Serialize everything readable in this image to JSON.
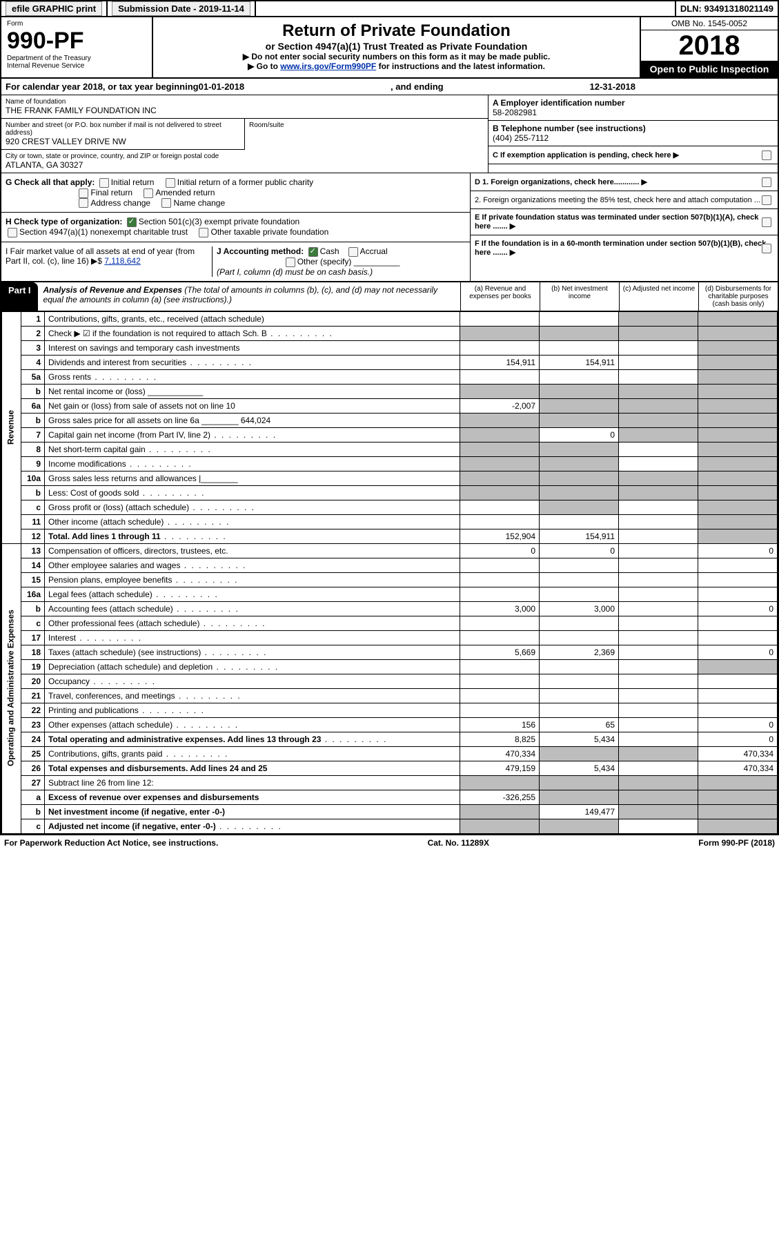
{
  "header_bar": {
    "efile": "efile GRAPHIC print",
    "submission_label": "Submission Date - 2019-11-14",
    "dln": "DLN: 93491318021149"
  },
  "form_header": {
    "form_word": "Form",
    "form_no": "990-PF",
    "dept": "Department of the Treasury",
    "irs": "Internal Revenue Service",
    "title": "Return of Private Foundation",
    "subtitle": "or Section 4947(a)(1) Trust Treated as Private Foundation",
    "note1": "▶ Do not enter social security numbers on this form as it may be made public.",
    "note2_prefix": "▶ Go to ",
    "note2_link": "www.irs.gov/Form990PF",
    "note2_suffix": " for instructions and the latest information.",
    "omb": "OMB No. 1545-0052",
    "year": "2018",
    "open_public": "Open to Public Inspection"
  },
  "cal_year": {
    "prefix": "For calendar year 2018, or tax year beginning ",
    "begin": "01-01-2018",
    "mid": " , and ending ",
    "end": "12-31-2018"
  },
  "name_block": {
    "label": "Name of foundation",
    "value": "THE FRANK FAMILY FOUNDATION INC"
  },
  "ein_block": {
    "label": "A Employer identification number",
    "value": "58-2082981"
  },
  "addr_block": {
    "label": "Number and street (or P.O. box number if mail is not delivered to street address)",
    "value": "920 CREST VALLEY DRIVE NW",
    "room_label": "Room/suite"
  },
  "phone_block": {
    "label": "B Telephone number (see instructions)",
    "value": "(404) 255-7112"
  },
  "city_block": {
    "label": "City or town, state or province, country, and ZIP or foreign postal code",
    "value": "ATLANTA, GA  30327"
  },
  "line_c": "C If exemption application is pending, check here",
  "line_g": {
    "label": "G Check all that apply:",
    "opt1": "Initial return",
    "opt2": "Initial return of a former public charity",
    "opt3": "Final return",
    "opt4": "Amended return",
    "opt5": "Address change",
    "opt6": "Name change"
  },
  "line_d": {
    "d1": "D 1. Foreign organizations, check here............",
    "d2": "2. Foreign organizations meeting the 85% test, check here and attach computation ..."
  },
  "line_h": {
    "label": "H Check type of organization:",
    "opt1": "Section 501(c)(3) exempt private foundation",
    "opt2": "Section 4947(a)(1) nonexempt charitable trust",
    "opt3": "Other taxable private foundation"
  },
  "line_e": "E If private foundation status was terminated under section 507(b)(1)(A), check here .......",
  "line_i": {
    "label": "I Fair market value of all assets at end of year (from Part II, col. (c), line 16) ▶$ ",
    "value": "7,118,642"
  },
  "line_j": {
    "label": "J Accounting method:",
    "cash": "Cash",
    "accrual": "Accrual",
    "other": "Other (specify)",
    "note": "(Part I, column (d) must be on cash basis.)"
  },
  "line_f": "F If the foundation is in a 60-month termination under section 507(b)(1)(B), check here .......",
  "part1": {
    "label": "Part I",
    "title": "Analysis of Revenue and Expenses",
    "note": " (The total of amounts in columns (b), (c), and (d) may not necessarily equal the amounts in column (a) (see instructions).)",
    "col_a": "(a)  Revenue and expenses per books",
    "col_b": "(b)  Net investment income",
    "col_c": "(c)  Adjusted net income",
    "col_d": "(d)  Disbursements for charitable purposes (cash basis only)"
  },
  "side_labels": {
    "revenue": "Revenue",
    "expenses": "Operating and Administrative Expenses"
  },
  "rows": [
    {
      "n": "1",
      "t": "Contributions, gifts, grants, etc., received (attach schedule)",
      "a": "",
      "b": "",
      "c": "s",
      "d": "s"
    },
    {
      "n": "2",
      "t": "Check ▶ ☑ if the foundation is not required to attach Sch. B",
      "a": "s",
      "b": "s",
      "c": "s",
      "d": "s",
      "dots": true
    },
    {
      "n": "3",
      "t": "Interest on savings and temporary cash investments",
      "a": "",
      "b": "",
      "c": "",
      "d": "s"
    },
    {
      "n": "4",
      "t": "Dividends and interest from securities",
      "a": "154,911",
      "b": "154,911",
      "c": "",
      "d": "s",
      "dots": true
    },
    {
      "n": "5a",
      "t": "Gross rents",
      "a": "",
      "b": "",
      "c": "",
      "d": "s",
      "dots": true
    },
    {
      "n": "b",
      "t": "Net rental income or (loss)  ____________",
      "a": "s",
      "b": "s",
      "c": "s",
      "d": "s"
    },
    {
      "n": "6a",
      "t": "Net gain or (loss) from sale of assets not on line 10",
      "a": "-2,007",
      "b": "s",
      "c": "s",
      "d": "s"
    },
    {
      "n": "b",
      "t": "Gross sales price for all assets on line 6a ________ 644,024",
      "a": "s",
      "b": "s",
      "c": "s",
      "d": "s"
    },
    {
      "n": "7",
      "t": "Capital gain net income (from Part IV, line 2)",
      "a": "s",
      "b": "0",
      "c": "s",
      "d": "s",
      "dots": true
    },
    {
      "n": "8",
      "t": "Net short-term capital gain",
      "a": "s",
      "b": "s",
      "c": "",
      "d": "s",
      "dots": true
    },
    {
      "n": "9",
      "t": "Income modifications",
      "a": "s",
      "b": "s",
      "c": "",
      "d": "s",
      "dots": true
    },
    {
      "n": "10a",
      "t": "Gross sales less returns and allowances  |________",
      "a": "s",
      "b": "s",
      "c": "s",
      "d": "s"
    },
    {
      "n": "b",
      "t": "Less: Cost of goods sold",
      "a": "s",
      "b": "s",
      "c": "s",
      "d": "s",
      "dots": true
    },
    {
      "n": "c",
      "t": "Gross profit or (loss) (attach schedule)",
      "a": "",
      "b": "s",
      "c": "",
      "d": "s",
      "dots": true
    },
    {
      "n": "11",
      "t": "Other income (attach schedule)",
      "a": "",
      "b": "",
      "c": "",
      "d": "s",
      "dots": true
    },
    {
      "n": "12",
      "t": "Total. Add lines 1 through 11",
      "a": "152,904",
      "b": "154,911",
      "c": "",
      "d": "s",
      "dots": true,
      "bold": true
    }
  ],
  "exp_rows": [
    {
      "n": "13",
      "t": "Compensation of officers, directors, trustees, etc.",
      "a": "0",
      "b": "0",
      "c": "",
      "d": "0"
    },
    {
      "n": "14",
      "t": "Other employee salaries and wages",
      "a": "",
      "b": "",
      "c": "",
      "d": "",
      "dots": true
    },
    {
      "n": "15",
      "t": "Pension plans, employee benefits",
      "a": "",
      "b": "",
      "c": "",
      "d": "",
      "dots": true
    },
    {
      "n": "16a",
      "t": "Legal fees (attach schedule)",
      "a": "",
      "b": "",
      "c": "",
      "d": "",
      "dots": true
    },
    {
      "n": "b",
      "t": "Accounting fees (attach schedule)",
      "a": "3,000",
      "b": "3,000",
      "c": "",
      "d": "0",
      "dots": true
    },
    {
      "n": "c",
      "t": "Other professional fees (attach schedule)",
      "a": "",
      "b": "",
      "c": "",
      "d": "",
      "dots": true
    },
    {
      "n": "17",
      "t": "Interest",
      "a": "",
      "b": "",
      "c": "",
      "d": "",
      "dots": true
    },
    {
      "n": "18",
      "t": "Taxes (attach schedule) (see instructions)",
      "a": "5,669",
      "b": "2,369",
      "c": "",
      "d": "0",
      "dots": true
    },
    {
      "n": "19",
      "t": "Depreciation (attach schedule) and depletion",
      "a": "",
      "b": "",
      "c": "",
      "d": "s",
      "dots": true
    },
    {
      "n": "20",
      "t": "Occupancy",
      "a": "",
      "b": "",
      "c": "",
      "d": "",
      "dots": true
    },
    {
      "n": "21",
      "t": "Travel, conferences, and meetings",
      "a": "",
      "b": "",
      "c": "",
      "d": "",
      "dots": true
    },
    {
      "n": "22",
      "t": "Printing and publications",
      "a": "",
      "b": "",
      "c": "",
      "d": "",
      "dots": true
    },
    {
      "n": "23",
      "t": "Other expenses (attach schedule)",
      "a": "156",
      "b": "65",
      "c": "",
      "d": "0",
      "dots": true
    },
    {
      "n": "24",
      "t": "Total operating and administrative expenses. Add lines 13 through 23",
      "a": "8,825",
      "b": "5,434",
      "c": "",
      "d": "0",
      "dots": true,
      "bold": true
    },
    {
      "n": "25",
      "t": "Contributions, gifts, grants paid",
      "a": "470,334",
      "b": "s",
      "c": "s",
      "d": "470,334",
      "dots": true
    },
    {
      "n": "26",
      "t": "Total expenses and disbursements. Add lines 24 and 25",
      "a": "479,159",
      "b": "5,434",
      "c": "",
      "d": "470,334",
      "bold": true
    },
    {
      "n": "27",
      "t": "Subtract line 26 from line 12:",
      "a": "s",
      "b": "s",
      "c": "s",
      "d": "s"
    },
    {
      "n": "a",
      "t": "Excess of revenue over expenses and disbursements",
      "a": "-326,255",
      "b": "s",
      "c": "s",
      "d": "s",
      "bold": true
    },
    {
      "n": "b",
      "t": "Net investment income (if negative, enter -0-)",
      "a": "s",
      "b": "149,477",
      "c": "s",
      "d": "s",
      "bold": true
    },
    {
      "n": "c",
      "t": "Adjusted net income (if negative, enter -0-)",
      "a": "s",
      "b": "s",
      "c": "",
      "d": "s",
      "bold": true,
      "dots": true
    }
  ],
  "footer": {
    "left": "For Paperwork Reduction Act Notice, see instructions.",
    "center": "Cat. No. 11289X",
    "right": "Form 990-PF (2018)"
  }
}
